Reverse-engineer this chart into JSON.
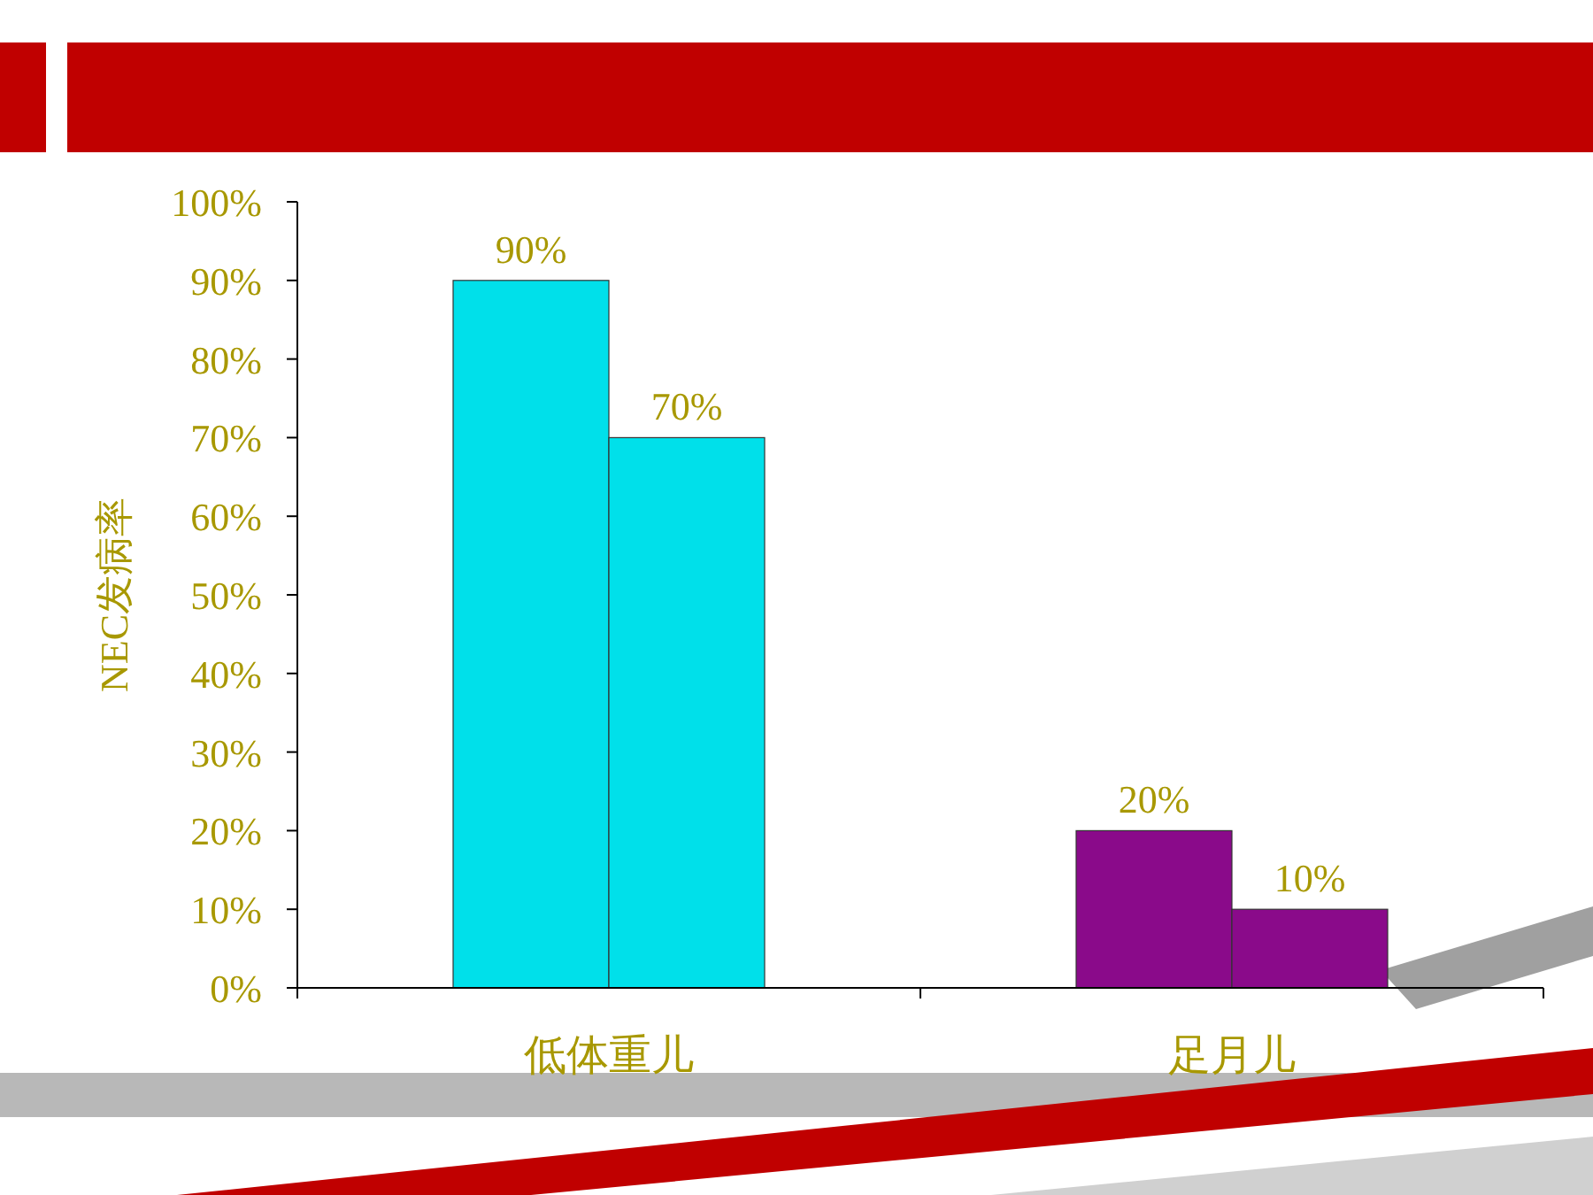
{
  "chart_data": {
    "type": "bar",
    "ylabel": "NEC发病率",
    "categories": [
      "低体重儿",
      "足月儿"
    ],
    "series": [
      {
        "colors": [
          "#00e0ea",
          "#8a0a8a"
        ],
        "values": [
          90,
          20
        ],
        "value_labels": [
          "90%",
          "20%"
        ]
      },
      {
        "colors": [
          "#00e0ea",
          "#8a0a8a"
        ],
        "values": [
          70,
          10
        ],
        "value_labels": [
          "70%",
          "10%"
        ]
      }
    ],
    "ylim": [
      0,
      100
    ],
    "yticks": [
      {
        "value": 0,
        "label": "0%"
      },
      {
        "value": 10,
        "label": "10%"
      },
      {
        "value": 20,
        "label": "20%"
      },
      {
        "value": 30,
        "label": "30%"
      },
      {
        "value": 40,
        "label": "40%"
      },
      {
        "value": 50,
        "label": "50%"
      },
      {
        "value": 60,
        "label": "60%"
      },
      {
        "value": 70,
        "label": "70%"
      },
      {
        "value": 80,
        "label": "80%"
      },
      {
        "value": 90,
        "label": "90%"
      },
      {
        "value": 100,
        "label": "100%"
      }
    ],
    "tick_labels": true
  }
}
